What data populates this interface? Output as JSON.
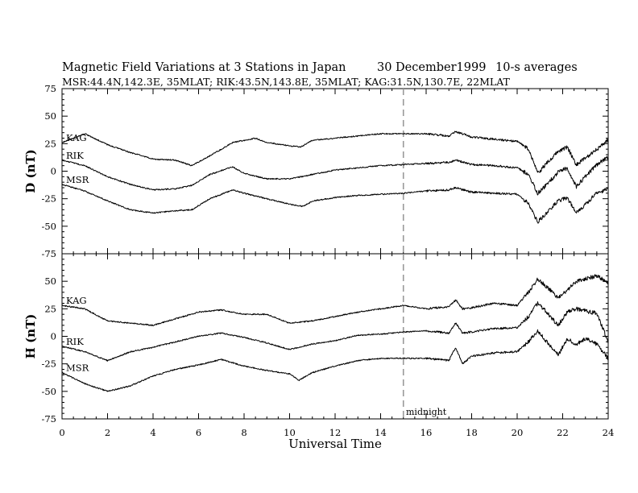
{
  "chart_data": {
    "type": "line",
    "title": "Magnetic Field Variations at 3 Stations in Japan",
    "date": "30 December1999",
    "averaging": "10-s averages",
    "subtitle": "MSR:44.4N,142.3E, 35MLAT;  RIK:43.5N,143.8E, 35MLAT;  KAG:31.5N,130.7E, 22MLAT",
    "xlabel": "Universal Time",
    "xlim": [
      0,
      24
    ],
    "xticks": [
      0,
      2,
      4,
      6,
      8,
      10,
      12,
      14,
      16,
      18,
      20,
      22,
      24
    ],
    "midnight": {
      "x": 15,
      "label": "midnight"
    },
    "panels": [
      {
        "ylabel": "D (nT)",
        "ylim": [
          -75,
          75
        ],
        "yticks": [
          75,
          50,
          25,
          0,
          -25,
          -50,
          -75
        ],
        "series": [
          {
            "name": "KAG",
            "x": [
              0,
              1,
              2,
              3,
              4,
              5,
              5.7,
              6.5,
              7.5,
              8.5,
              9,
              10,
              10.5,
              11,
              12,
              13,
              14,
              15,
              16,
              17,
              17.3,
              18,
              19,
              20,
              20.5,
              20.9,
              21.3,
              21.8,
              22.2,
              22.6,
              23,
              23.5,
              24
            ],
            "y": [
              26,
              34,
              24,
              17,
              11,
              10,
              5,
              14,
              26,
              30,
              26,
              23,
              22,
              28,
              30,
              32,
              34,
              34,
              34,
              32,
              36,
              31,
              29,
              27,
              20,
              -2,
              7,
              18,
              22,
              6,
              12,
              20,
              28
            ]
          },
          {
            "name": "RIK",
            "x": [
              0,
              1,
              2,
              3,
              4,
              5,
              5.7,
              6.5,
              7.5,
              8,
              9,
              10,
              11,
              12,
              13,
              14,
              15,
              16,
              17,
              17.3,
              18,
              19,
              20,
              20.5,
              20.9,
              21.3,
              21.8,
              22.2,
              22.6,
              23,
              23.5,
              24
            ],
            "y": [
              10,
              5,
              -5,
              -12,
              -17,
              -16,
              -13,
              -3,
              4,
              -2,
              -7,
              -7,
              -3,
              1,
              3,
              5,
              6,
              7,
              8,
              10,
              6,
              5,
              3,
              -3,
              -20,
              -12,
              -1,
              3,
              -14,
              -5,
              6,
              13
            ]
          },
          {
            "name": "MSR",
            "x": [
              0,
              1,
              2,
              3,
              4,
              5,
              5.7,
              6.5,
              7.5,
              8,
              9,
              10,
              10.6,
              11,
              12,
              13,
              14,
              15,
              16,
              17,
              17.3,
              18,
              19,
              20,
              20.5,
              20.9,
              21.3,
              21.8,
              22.2,
              22.6,
              23,
              23.5,
              24
            ],
            "y": [
              -12,
              -18,
              -27,
              -35,
              -38,
              -36,
              -35,
              -25,
              -17,
              -20,
              -25,
              -30,
              -32,
              -27,
              -24,
              -22,
              -21,
              -20,
              -18,
              -17,
              -15,
              -19,
              -20,
              -21,
              -29,
              -46,
              -38,
              -27,
              -24,
              -38,
              -30,
              -20,
              -16
            ]
          }
        ]
      },
      {
        "ylabel": "H (nT)",
        "ylim": [
          -75,
          75
        ],
        "yticks": [
          50,
          25,
          0,
          -25,
          -50,
          -75
        ],
        "series": [
          {
            "name": "KAG",
            "x": [
              0,
              1,
              2,
              3,
              4,
              5,
              6,
              7,
              8,
              9,
              10,
              11,
              12,
              13,
              14,
              15,
              16,
              17,
              17.3,
              17.6,
              18,
              19,
              20,
              20.5,
              20.9,
              21.3,
              21.8,
              22.2,
              22.6,
              23,
              23.5,
              24
            ],
            "y": [
              28,
              25,
              14,
              12,
              10,
              16,
              22,
              24,
              20,
              20,
              12,
              14,
              18,
              22,
              25,
              28,
              25,
              27,
              33,
              25,
              26,
              30,
              28,
              40,
              52,
              45,
              35,
              42,
              50,
              52,
              55,
              49
            ]
          },
          {
            "name": "RIK",
            "x": [
              0,
              1,
              2,
              3,
              4,
              5,
              6,
              7,
              8,
              9,
              10,
              11,
              12,
              13,
              14,
              15,
              16,
              17,
              17.3,
              17.6,
              18,
              19,
              20,
              20.5,
              20.9,
              21.3,
              21.8,
              22.2,
              22.6,
              23,
              23.5,
              24
            ],
            "y": [
              -9,
              -14,
              -22,
              -14,
              -10,
              -5,
              0,
              3,
              -1,
              -6,
              -12,
              -7,
              -4,
              1,
              2,
              4,
              5,
              3,
              12,
              3,
              4,
              7,
              8,
              18,
              30,
              22,
              10,
              22,
              25,
              23,
              21,
              -5
            ]
          },
          {
            "name": "MSR",
            "x": [
              0,
              1,
              2,
              3,
              4,
              5,
              6,
              7,
              8,
              9,
              10,
              10.4,
              11,
              12,
              13,
              14,
              15,
              16,
              17,
              17.3,
              17.6,
              18,
              19,
              20,
              20.5,
              20.9,
              21.3,
              21.8,
              22.2,
              22.6,
              23,
              23.5,
              24
            ],
            "y": [
              -33,
              -43,
              -50,
              -45,
              -36,
              -30,
              -26,
              -21,
              -27,
              -31,
              -34,
              -40,
              -33,
              -27,
              -22,
              -20,
              -20,
              -20,
              -22,
              -10,
              -25,
              -18,
              -15,
              -14,
              -5,
              5,
              -5,
              -17,
              -2,
              -7,
              -2,
              -7,
              -20
            ]
          }
        ]
      }
    ]
  }
}
